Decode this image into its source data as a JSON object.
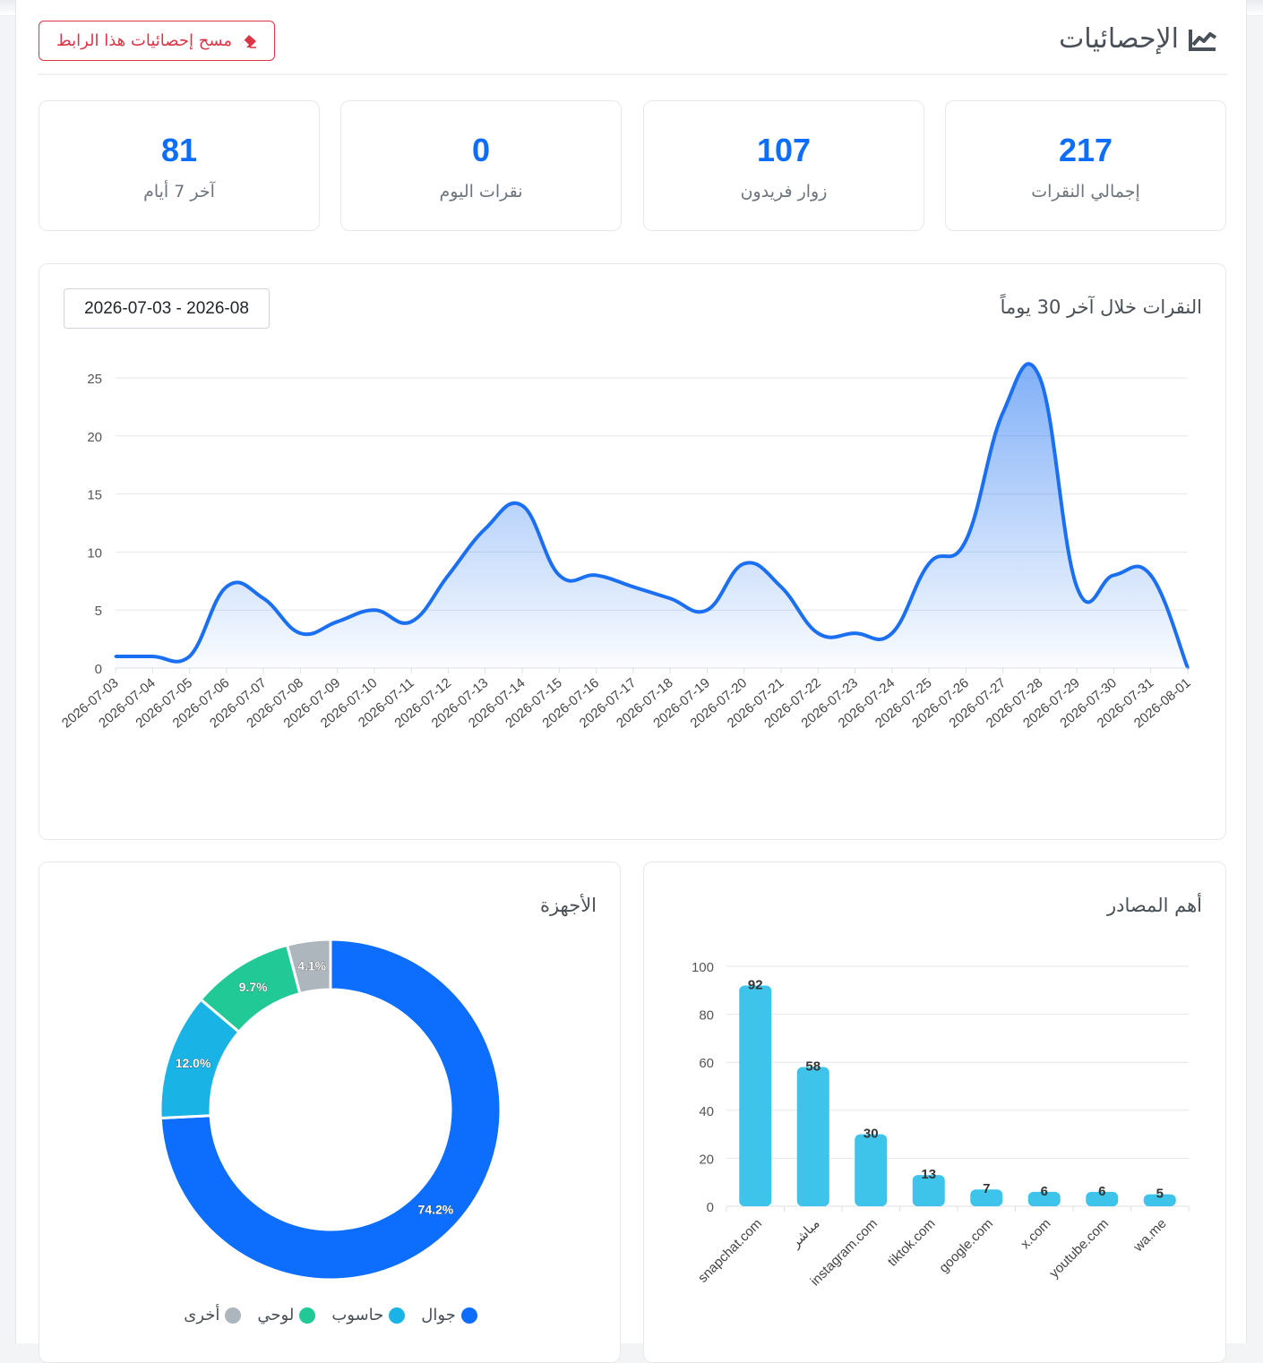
{
  "header": {
    "title": "الإحصائيات",
    "title_icon": "chart-line-icon",
    "clear_button": "مسح إحصائيات هذا الرابط",
    "clear_icon": "eraser-icon"
  },
  "stats": [
    {
      "value": "217",
      "label": "إجمالي النقرات"
    },
    {
      "value": "107",
      "label": "زوار فريدون"
    },
    {
      "value": "0",
      "label": "نقرات اليوم"
    },
    {
      "value": "81",
      "label": "آخر 7 أيام"
    }
  ],
  "colors": {
    "primary": "#0d6efd",
    "line": "#1a6ff2",
    "danger": "#dc3545",
    "bar": "#3ec3ea",
    "device_colors": [
      "#0d6efd",
      "#1ab3e6",
      "#20c995",
      "#adb5bd"
    ]
  },
  "line_card": {
    "title": "النقرات خلال آخر 30 يوماً",
    "date_range": "2026-07-03 - 2026-08"
  },
  "devices_card": {
    "title": "الأجهزة"
  },
  "sources_card": {
    "title": "أهم المصادر"
  },
  "chart_data": [
    {
      "type": "area",
      "title": "النقرات خلال آخر 30 يوماً",
      "x": [
        "2026-07-03",
        "2026-07-04",
        "2026-07-05",
        "2026-07-06",
        "2026-07-07",
        "2026-07-08",
        "2026-07-09",
        "2026-07-10",
        "2026-07-11",
        "2026-07-12",
        "2026-07-13",
        "2026-07-14",
        "2026-07-15",
        "2026-07-16",
        "2026-07-17",
        "2026-07-18",
        "2026-07-19",
        "2026-07-20",
        "2026-07-21",
        "2026-07-22",
        "2026-07-23",
        "2026-07-24",
        "2026-07-25",
        "2026-07-26",
        "2026-07-27",
        "2026-07-28",
        "2026-07-29",
        "2026-07-30",
        "2026-07-31",
        "2026-08-01"
      ],
      "values": [
        1,
        1,
        1,
        7,
        6,
        3,
        4,
        5,
        4,
        8,
        12,
        14,
        8,
        8,
        7,
        6,
        5,
        9,
        7,
        3,
        3,
        3,
        9,
        11,
        22,
        25,
        7,
        8,
        8,
        0
      ],
      "ylim": [
        0,
        25
      ],
      "yticks": [
        0,
        5,
        10,
        15,
        20,
        25
      ],
      "grid": true
    },
    {
      "type": "pie",
      "title": "الأجهزة",
      "labels": [
        "جوال",
        "حاسوب",
        "لوحي",
        "أخرى"
      ],
      "values": [
        74.2,
        12.0,
        9.7,
        4.1
      ],
      "value_labels": [
        "74.2%",
        "12.0%",
        "9.7%",
        "4.1%"
      ],
      "legend": "bottom"
    },
    {
      "type": "bar",
      "title": "أهم المصادر",
      "categories": [
        "snapchat.com",
        "مباشر",
        "instagram.com",
        "tiktok.com",
        "google.com",
        "x.com",
        "youtube.com",
        "wa.me"
      ],
      "values": [
        92,
        58,
        30,
        13,
        7,
        6,
        6,
        5
      ],
      "ylim": [
        0,
        100
      ],
      "yticks": [
        0,
        20,
        40,
        60,
        80,
        100
      ],
      "grid": true
    }
  ]
}
